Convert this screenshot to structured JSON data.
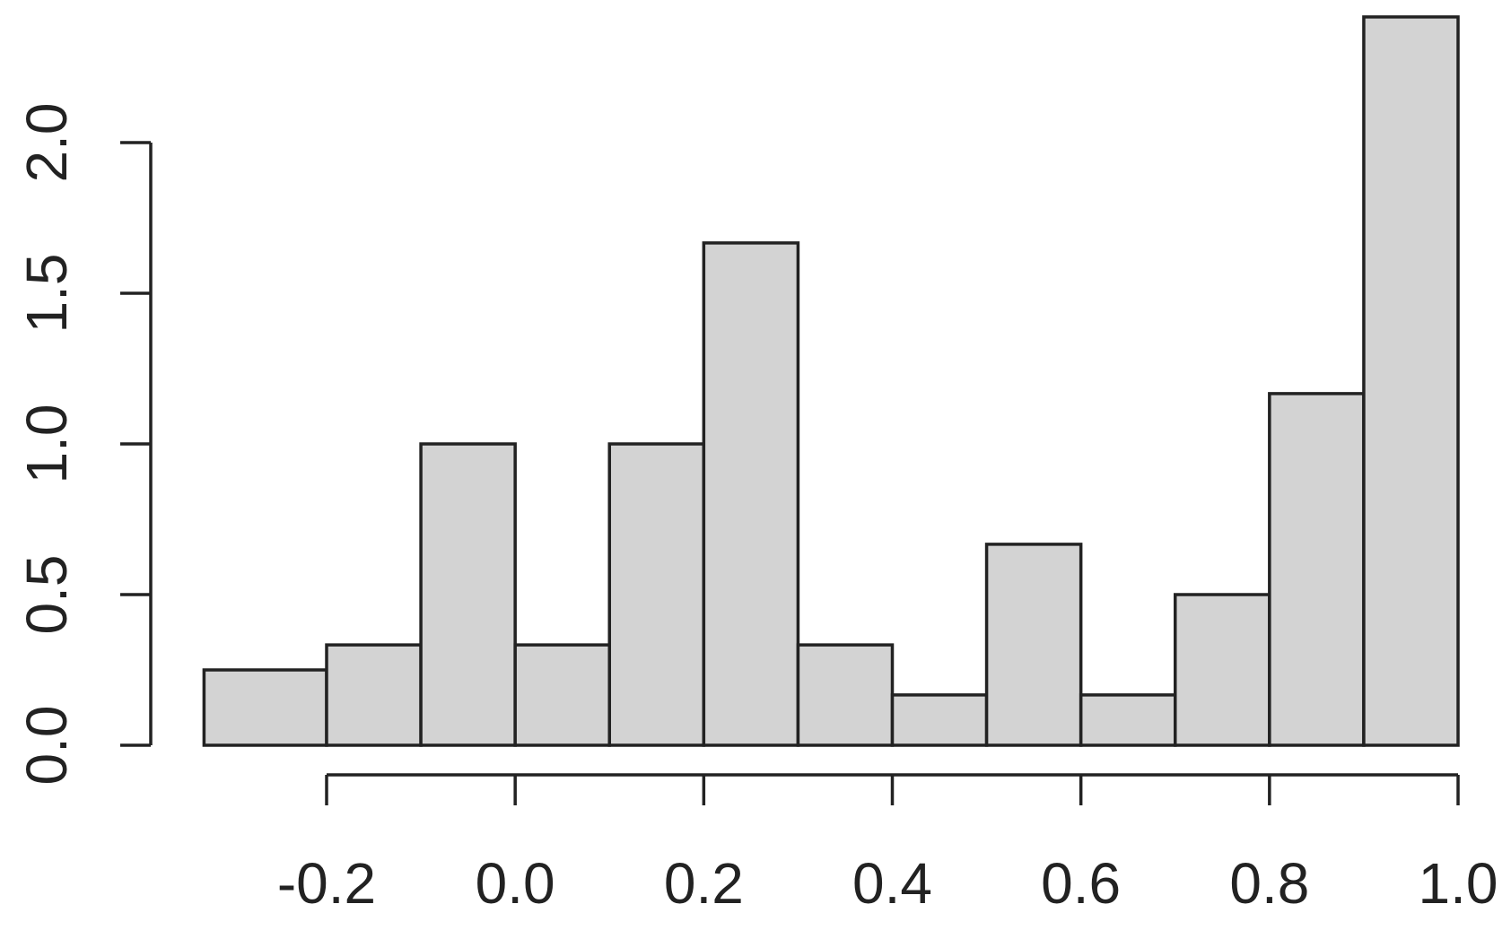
{
  "chart_data": {
    "type": "bar",
    "title": "",
    "xlabel": "",
    "ylabel": "",
    "bins": [
      {
        "x0": -0.33,
        "x1": -0.2,
        "density": 0.25
      },
      {
        "x0": -0.2,
        "x1": -0.1,
        "density": 0.333
      },
      {
        "x0": -0.1,
        "x1": 0.0,
        "density": 1.0
      },
      {
        "x0": 0.0,
        "x1": 0.1,
        "density": 0.333
      },
      {
        "x0": 0.1,
        "x1": 0.2,
        "density": 1.0
      },
      {
        "x0": 0.2,
        "x1": 0.3,
        "density": 1.667
      },
      {
        "x0": 0.3,
        "x1": 0.4,
        "density": 0.333
      },
      {
        "x0": 0.4,
        "x1": 0.5,
        "density": 0.167
      },
      {
        "x0": 0.5,
        "x1": 0.6,
        "density": 0.667
      },
      {
        "x0": 0.6,
        "x1": 0.7,
        "density": 0.167
      },
      {
        "x0": 0.7,
        "x1": 0.8,
        "density": 0.5
      },
      {
        "x0": 0.8,
        "x1": 0.9,
        "density": 1.167
      },
      {
        "x0": 0.9,
        "x1": 1.0,
        "density": 2.417
      }
    ],
    "xlim": [
      -0.33,
      1.0
    ],
    "ylim": [
      0,
      2.417
    ],
    "x_axis": {
      "ticks": [
        -0.2,
        0.0,
        0.2,
        0.4,
        0.6,
        0.8,
        1.0
      ],
      "tick_labels": [
        "-0.2",
        "0.0",
        "0.2",
        "0.4",
        "0.6",
        "0.8",
        "1.0"
      ]
    },
    "y_axis": {
      "ticks": [
        0.0,
        0.5,
        1.0,
        1.5,
        2.0
      ],
      "tick_labels": [
        "0.0",
        "0.5",
        "1.0",
        "1.5",
        "2.0"
      ]
    },
    "grid": false,
    "legend": "none",
    "colors": {
      "bar_fill": "#d3d3d3",
      "bar_stroke": "#222222",
      "axis": "#222222"
    }
  }
}
